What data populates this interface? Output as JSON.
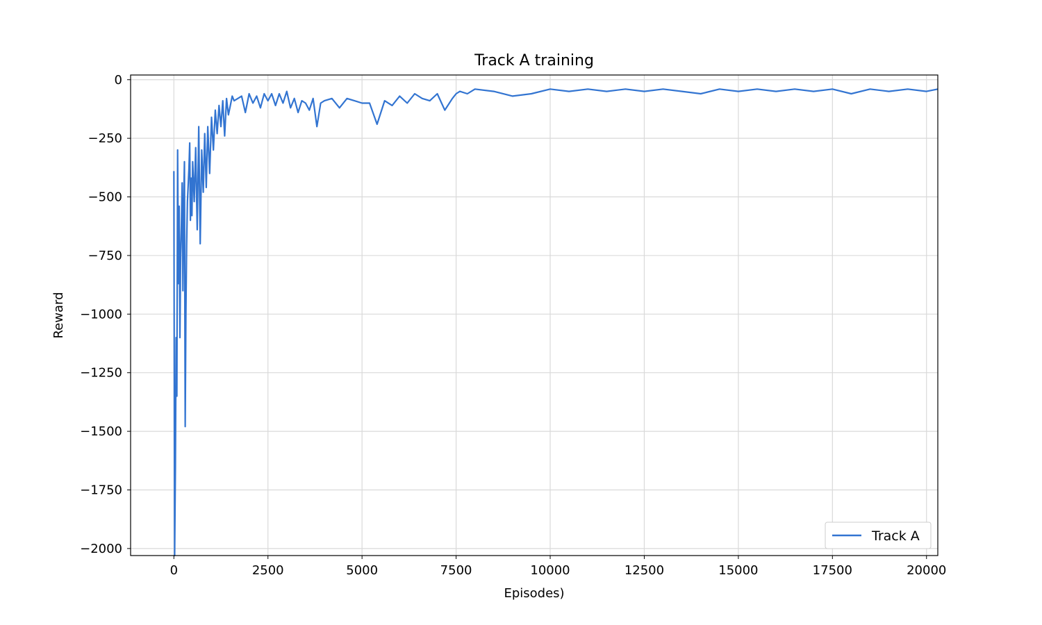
{
  "chart_data": {
    "type": "line",
    "title": "Track A training",
    "xlabel": "Episodes)",
    "ylabel": "Reward",
    "xlim": [
      -1150,
      20300
    ],
    "ylim": [
      -2030,
      20
    ],
    "xticks": [
      0,
      2500,
      5000,
      7500,
      10000,
      12500,
      15000,
      17500,
      20000
    ],
    "xtick_labels": [
      "0",
      "2500",
      "5000",
      "7500",
      "10000",
      "12500",
      "15000",
      "17500",
      "20000"
    ],
    "yticks": [
      0,
      -250,
      -500,
      -750,
      -1000,
      -1250,
      -1500,
      -1750,
      -2000
    ],
    "ytick_labels": [
      "0",
      "−250",
      "−500",
      "−750",
      "−1000",
      "−1250",
      "−1500",
      "−1750",
      "−2000"
    ],
    "grid": true,
    "legend_position": "lower-right",
    "series": [
      {
        "name": "Track A",
        "color": "#3274d1",
        "x": [
          0,
          20,
          40,
          60,
          80,
          100,
          120,
          140,
          160,
          180,
          200,
          220,
          240,
          260,
          280,
          300,
          320,
          340,
          360,
          380,
          400,
          420,
          440,
          460,
          480,
          500,
          540,
          580,
          620,
          660,
          700,
          740,
          780,
          820,
          860,
          900,
          950,
          1000,
          1050,
          1100,
          1150,
          1200,
          1250,
          1300,
          1350,
          1400,
          1450,
          1500,
          1550,
          1600,
          1700,
          1800,
          1900,
          2000,
          2100,
          2200,
          2300,
          2400,
          2500,
          2600,
          2700,
          2800,
          2900,
          3000,
          3100,
          3200,
          3300,
          3400,
          3500,
          3600,
          3700,
          3800,
          3900,
          4000,
          4200,
          4400,
          4600,
          4800,
          5000,
          5200,
          5400,
          5600,
          5800,
          6000,
          6200,
          6400,
          6600,
          6800,
          7000,
          7200,
          7400,
          7500,
          7600,
          7800,
          8000,
          8500,
          9000,
          9500,
          10000,
          10500,
          11000,
          11500,
          12000,
          12500,
          13000,
          13500,
          14000,
          14500,
          15000,
          15500,
          16000,
          16500,
          17000,
          17500,
          18000,
          18500,
          19000,
          19500,
          20000,
          20300
        ],
        "y": [
          -390,
          -2030,
          -1650,
          -1100,
          -1350,
          -300,
          -870,
          -540,
          -1100,
          -750,
          -620,
          -440,
          -900,
          -530,
          -350,
          -1480,
          -1000,
          -700,
          -520,
          -450,
          -380,
          -270,
          -600,
          -420,
          -580,
          -350,
          -520,
          -290,
          -640,
          -200,
          -700,
          -300,
          -480,
          -230,
          -460,
          -200,
          -400,
          -160,
          -300,
          -130,
          -230,
          -110,
          -200,
          -90,
          -240,
          -80,
          -150,
          -110,
          -70,
          -90,
          -80,
          -70,
          -140,
          -60,
          -100,
          -70,
          -120,
          -60,
          -90,
          -60,
          -110,
          -60,
          -100,
          -50,
          -120,
          -80,
          -140,
          -90,
          -100,
          -130,
          -80,
          -200,
          -100,
          -90,
          -80,
          -120,
          -80,
          -90,
          -100,
          -100,
          -190,
          -90,
          -110,
          -70,
          -100,
          -60,
          -80,
          -90,
          -60,
          -130,
          -80,
          -60,
          -50,
          -60,
          -40,
          -50,
          -70,
          -60,
          -40,
          -50,
          -40,
          -50,
          -40,
          -50,
          -40,
          -50,
          -60,
          -40,
          -50,
          -40,
          -50,
          -40,
          -50,
          -40,
          -60,
          -40,
          -50,
          -40,
          -50,
          -40
        ]
      }
    ]
  }
}
